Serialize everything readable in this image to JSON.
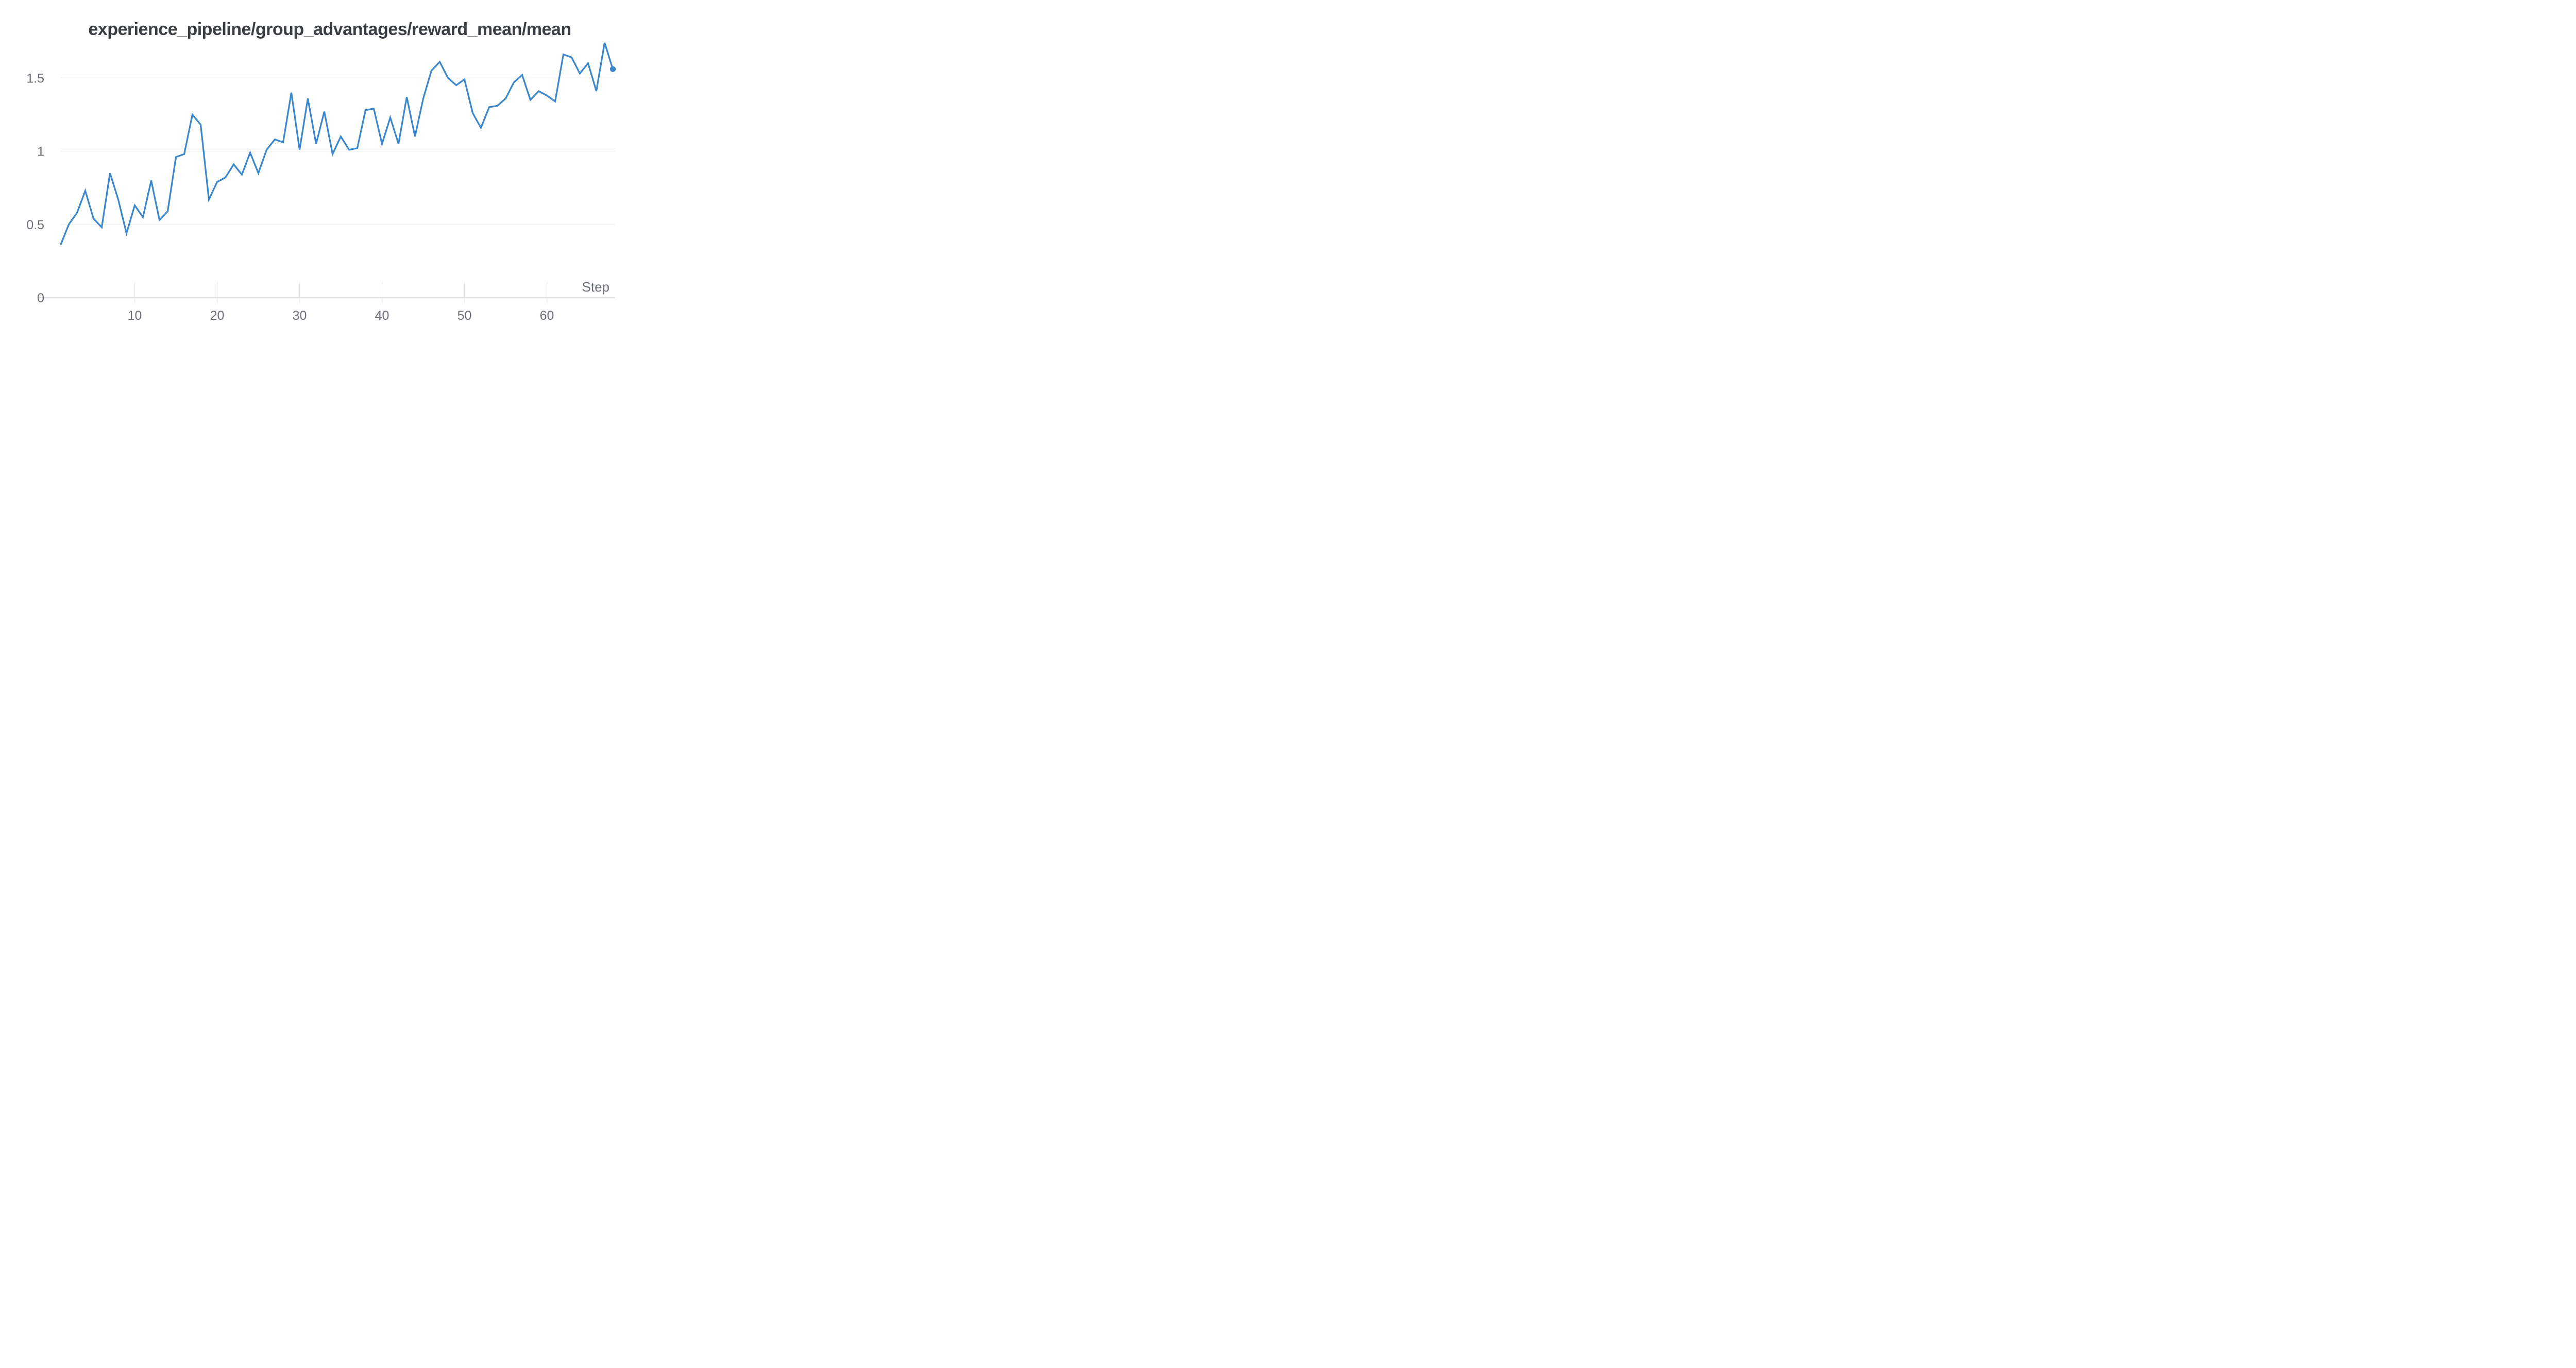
{
  "title": "experience_pipeline/group_advantages/reward_mean/mean",
  "axes": {
    "x_label": "Step",
    "y_tick_labels": [
      "0",
      "0.5",
      "1",
      "1.5"
    ],
    "x_tick_labels": [
      "10",
      "20",
      "30",
      "40",
      "50",
      "60"
    ]
  },
  "colors": {
    "line": "#3b87cd",
    "endpoint_dot": "#3b87cd",
    "gridline": "#e9e9ec",
    "zero_axis": "#e1e1e4",
    "tick_line": "#e7e7ea",
    "tick_label": "#6d7078",
    "axis_label": "#6d7078",
    "title": "#3a3e43"
  },
  "chart_data": {
    "type": "line",
    "title": "experience_pipeline/group_advantages/reward_mean/mean",
    "xlabel": "Step",
    "ylabel": "",
    "x": [
      1,
      2,
      3,
      4,
      5,
      6,
      7,
      8,
      9,
      10,
      11,
      12,
      13,
      14,
      15,
      16,
      17,
      18,
      19,
      20,
      21,
      22,
      23,
      24,
      25,
      26,
      27,
      28,
      29,
      30,
      31,
      32,
      33,
      34,
      35,
      36,
      37,
      38,
      39,
      40,
      41,
      42,
      43,
      44,
      45,
      46,
      47,
      48,
      49,
      50,
      51,
      52,
      53,
      54,
      55,
      56,
      57,
      58,
      59,
      60,
      61,
      62,
      63,
      64,
      65,
      66,
      67,
      68
    ],
    "values": [
      0.36,
      0.5,
      0.58,
      0.73,
      0.54,
      0.48,
      0.85,
      0.67,
      0.44,
      0.63,
      0.55,
      0.8,
      0.53,
      0.59,
      0.96,
      0.98,
      1.25,
      1.18,
      0.67,
      0.79,
      0.82,
      0.91,
      0.84,
      0.99,
      0.85,
      1.01,
      1.08,
      1.06,
      1.4,
      1.01,
      1.36,
      1.05,
      1.27,
      0.98,
      1.1,
      1.01,
      1.02,
      1.28,
      1.29,
      1.05,
      1.23,
      1.05,
      1.37,
      1.1,
      1.36,
      1.55,
      1.61,
      1.5,
      1.45,
      1.49,
      1.26,
      1.16,
      1.3,
      1.31,
      1.36,
      1.47,
      1.52,
      1.35,
      1.41,
      1.38,
      1.34,
      1.66,
      1.64,
      1.53,
      1.6,
      1.41,
      1.74,
      1.56
    ],
    "x_tick_values": [
      10,
      20,
      30,
      40,
      50,
      60
    ],
    "y_tick_values": [
      0,
      0.5,
      1,
      1.5
    ],
    "ylim": [
      0,
      1.75
    ],
    "xlim": [
      1,
      68
    ],
    "grid": true,
    "legend": false,
    "endpoint_marker": true
  }
}
